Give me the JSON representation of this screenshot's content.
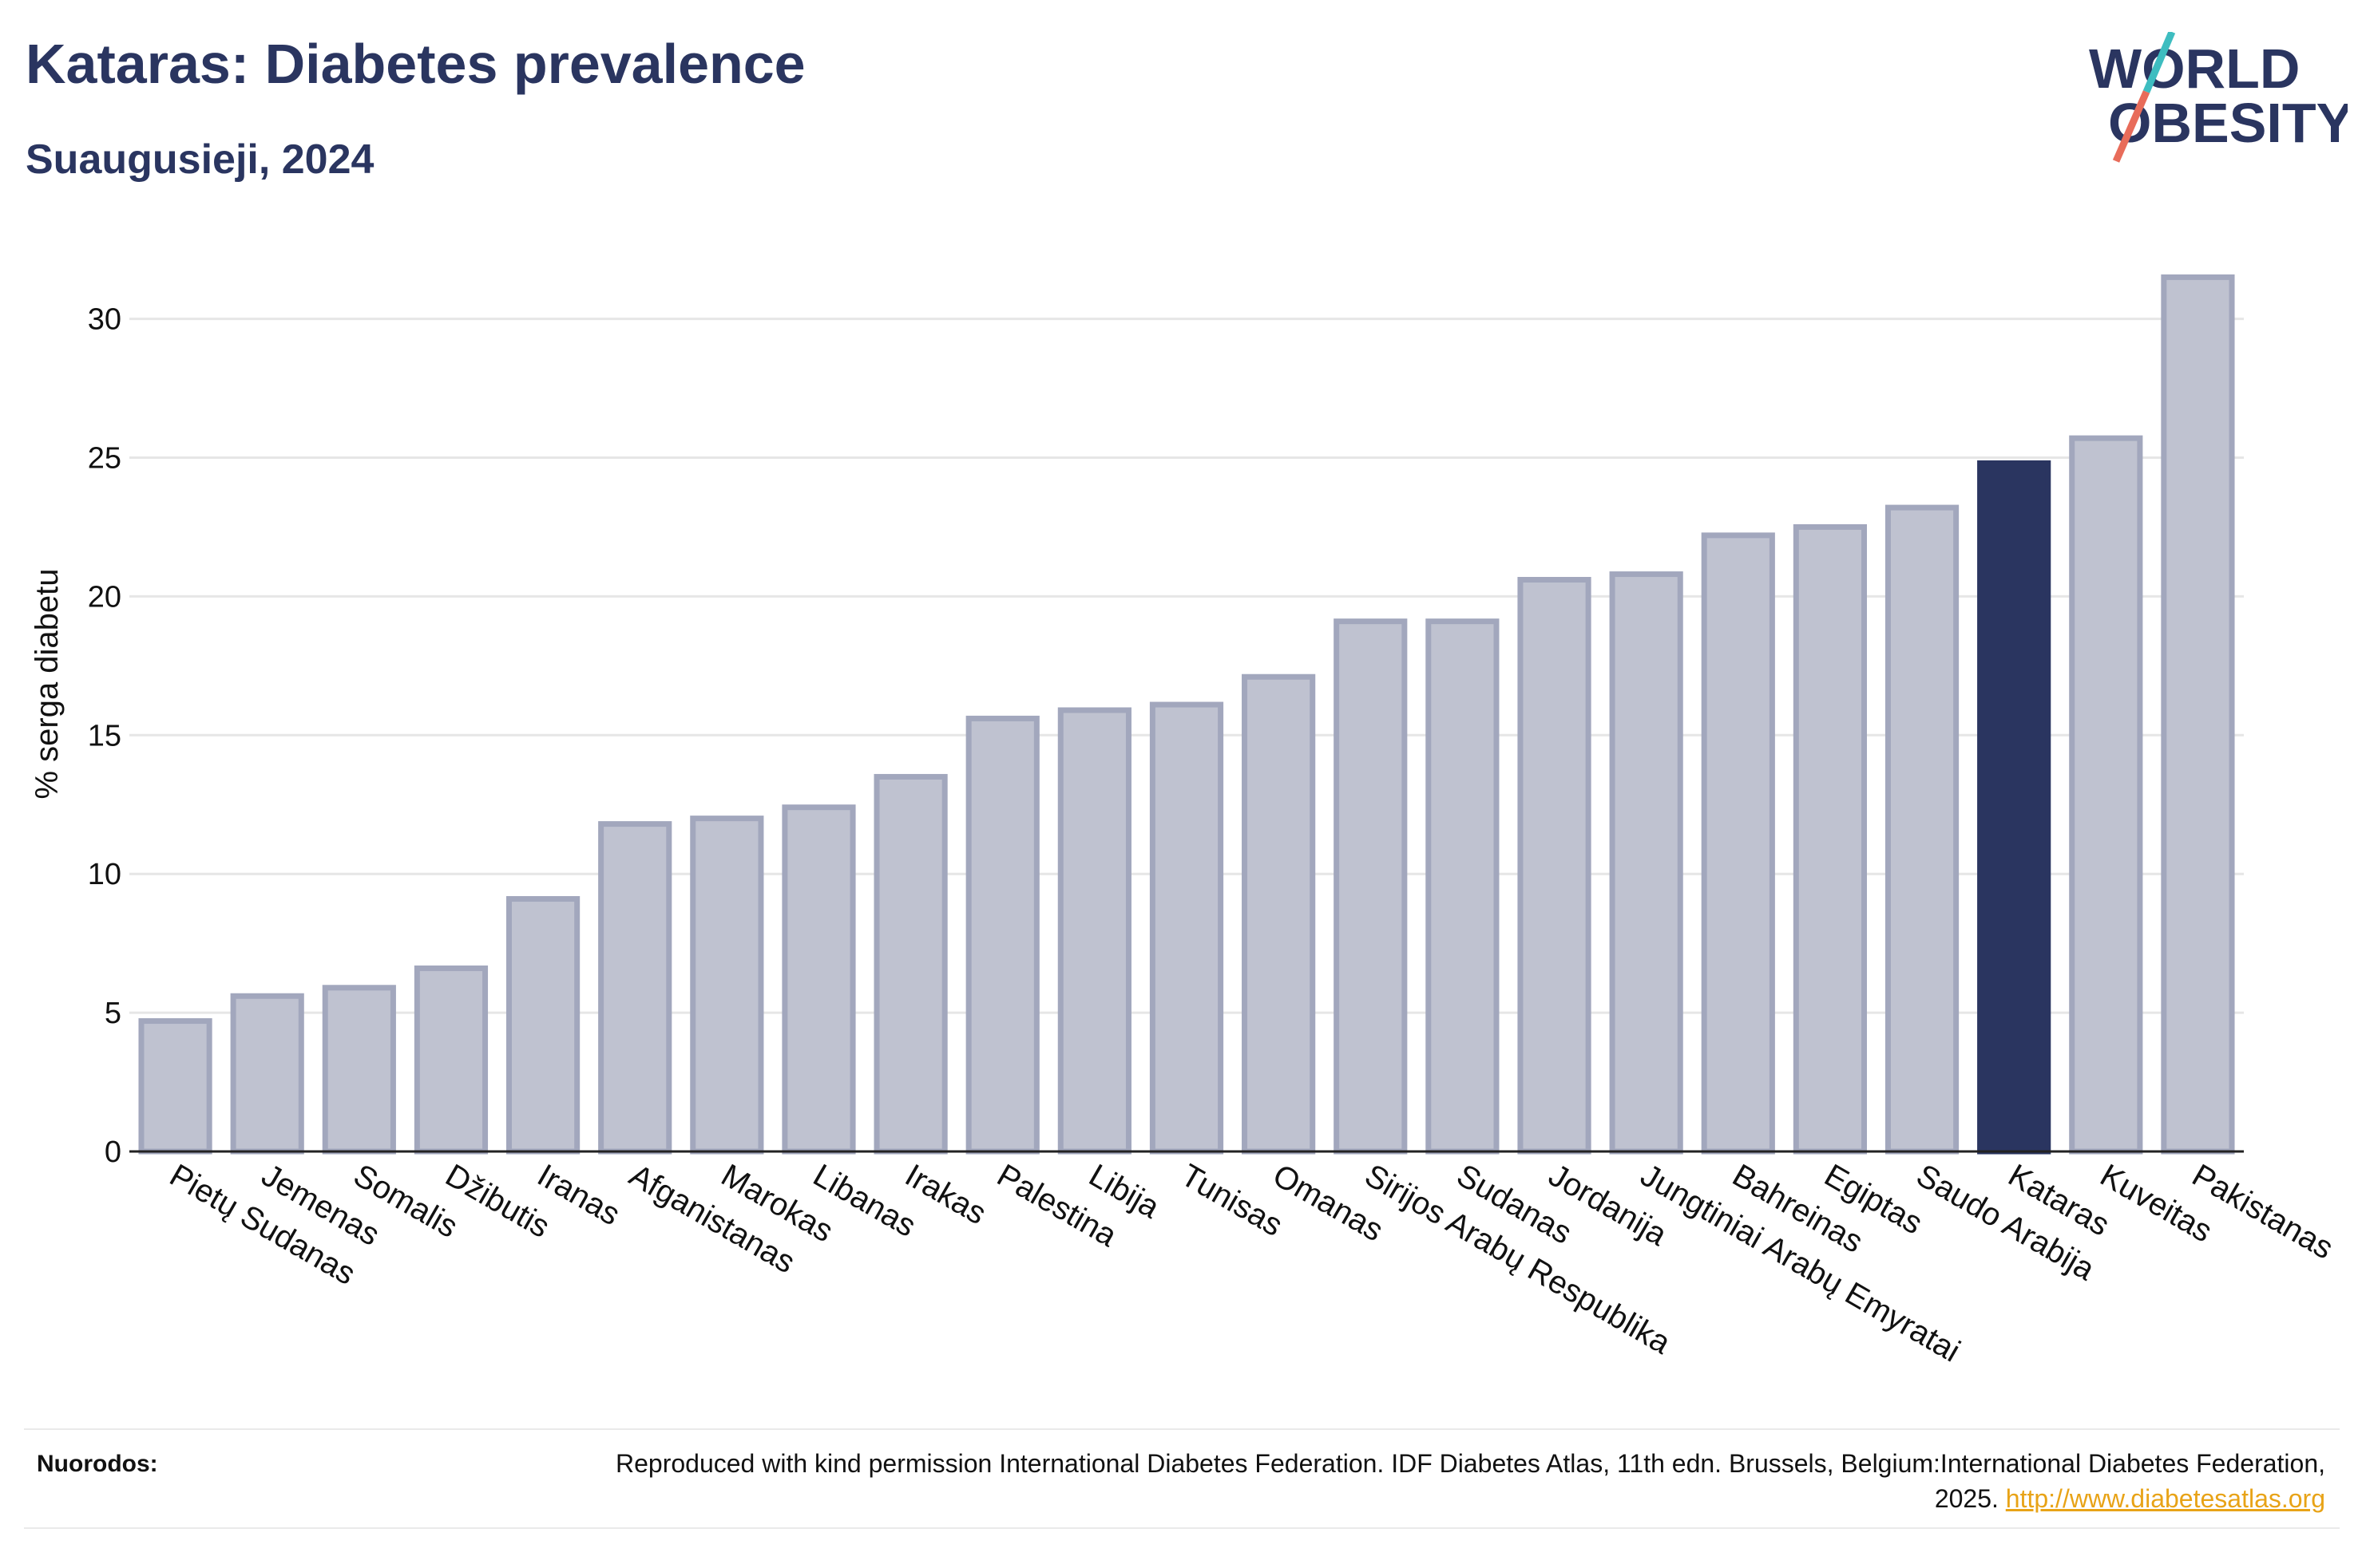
{
  "header": {
    "title": "Kataras: Diabetes prevalence",
    "subtitle": "Suaugusieji, 2024"
  },
  "logo": {
    "line1": "WORLD",
    "line2": "OBESITY"
  },
  "chart_data": {
    "type": "bar",
    "ylabel": "% serga diabetu",
    "ylim": [
      0,
      32
    ],
    "yticks": [
      0,
      5,
      10,
      15,
      20,
      25,
      30
    ],
    "grid": true,
    "highlight": "Kataras",
    "colors": {
      "bar": "#bfc2d0",
      "bar_border": "#a2a7bd",
      "highlight": "#2a3560"
    },
    "categories": [
      "Pietų Sudanas",
      "Jemenas",
      "Somalis",
      "Džibutis",
      "Iranas",
      "Afganistanas",
      "Marokas",
      "Libanas",
      "Irakas",
      "Palestina",
      "Libija",
      "Tunisas",
      "Omanas",
      "Sirijos Arabų Respublika",
      "Sudanas",
      "Jordanija",
      "Jungtiniai Arabų Emyratai",
      "Bahreinas",
      "Egiptas",
      "Saudo Arabija",
      "Kataras",
      "Kuveitas",
      "Pakistanas"
    ],
    "values": [
      4.7,
      5.6,
      5.9,
      6.6,
      9.1,
      11.8,
      12.0,
      12.4,
      13.5,
      15.6,
      15.9,
      16.1,
      17.1,
      19.1,
      19.1,
      20.6,
      20.8,
      22.2,
      22.5,
      23.2,
      24.8,
      25.7,
      31.5
    ]
  },
  "footer": {
    "label": "Nuorodos:",
    "text": "Reproduced with kind permission International Diabetes Federation. IDF Diabetes Atlas, 11th edn. Brussels, Belgium:International Diabetes Federation, 2025.",
    "link": "http://www.diabetesatlas.org"
  }
}
